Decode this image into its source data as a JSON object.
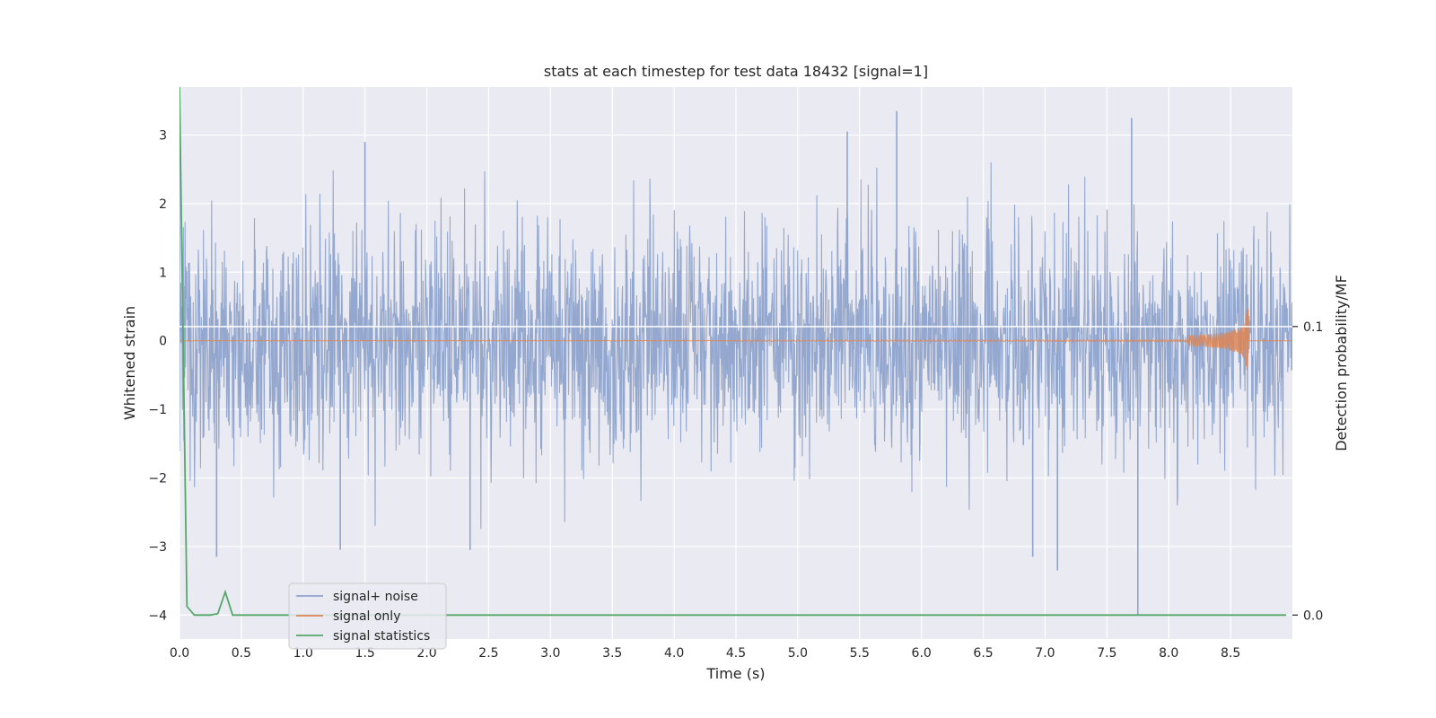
{
  "chart_data": {
    "type": "line",
    "title": "stats at each timestep for test data 18432 [signal=1]",
    "xlabel": "Time (s)",
    "ylabel": "Whitened strain",
    "ylabel_right": "Detection probability/MF",
    "xlim": [
      0.0,
      9.0
    ],
    "ylim": [
      -4.35,
      3.7
    ],
    "ylim_right": [
      -0.0083,
      0.183
    ],
    "grid": true,
    "legend_position": "lower-left",
    "x_ticks": [
      "0.0",
      "0.5",
      "1.0",
      "1.5",
      "2.0",
      "2.5",
      "3.0",
      "3.5",
      "4.0",
      "4.5",
      "5.0",
      "5.5",
      "6.0",
      "6.5",
      "7.0",
      "7.5",
      "8.0",
      "8.5"
    ],
    "y_ticks": [
      "3",
      "2",
      "1",
      "0",
      "−1",
      "−2",
      "−3",
      "−4"
    ],
    "y_ticks_right": [
      "0.1",
      "0.0"
    ],
    "colors": {
      "background": "#eaeaf2",
      "grid": "#ffffff",
      "noise": "#8fa4cc",
      "signal": "#dd8452",
      "stats": "#55a868"
    },
    "series": [
      {
        "name": "signal+ noise",
        "color": "#8fa4cc",
        "description_values": {
          "typical_range": [
            -1.5,
            1.5
          ],
          "notable_peaks": [
            {
              "x": 0.0,
              "y": 3.3
            },
            {
              "x": 1.5,
              "y": 2.9
            },
            {
              "x": 5.4,
              "y": 3.05
            },
            {
              "x": 5.8,
              "y": 3.35
            },
            {
              "x": 7.7,
              "y": 3.25
            },
            {
              "x": 0.3,
              "y": -3.15
            },
            {
              "x": 1.3,
              "y": -3.05
            },
            {
              "x": 2.35,
              "y": -3.05
            },
            {
              "x": 6.9,
              "y": -3.15
            },
            {
              "x": 7.1,
              "y": -3.35
            },
            {
              "x": 7.75,
              "y": -4.0
            }
          ]
        }
      },
      {
        "name": "signal only",
        "color": "#dd8452",
        "description_values": {
          "chirp_end_time": 8.65,
          "max_amplitude": 0.5
        }
      },
      {
        "name": "signal statistics",
        "axis": "right",
        "color": "#55a868",
        "x": [
          0.0,
          0.06,
          0.12,
          0.25,
          0.31,
          0.37,
          0.43,
          0.5,
          1.0,
          2.0,
          3.0,
          4.0,
          5.0,
          6.0,
          7.0,
          8.0,
          8.95
        ],
        "y": [
          0.183,
          0.003,
          0.0,
          0.0,
          0.0005,
          0.008,
          0.0,
          0.0,
          0.0,
          0.0,
          0.0,
          0.0,
          0.0,
          0.0,
          0.0,
          0.0,
          0.0
        ]
      }
    ],
    "threshold_line_right": 0.1
  }
}
